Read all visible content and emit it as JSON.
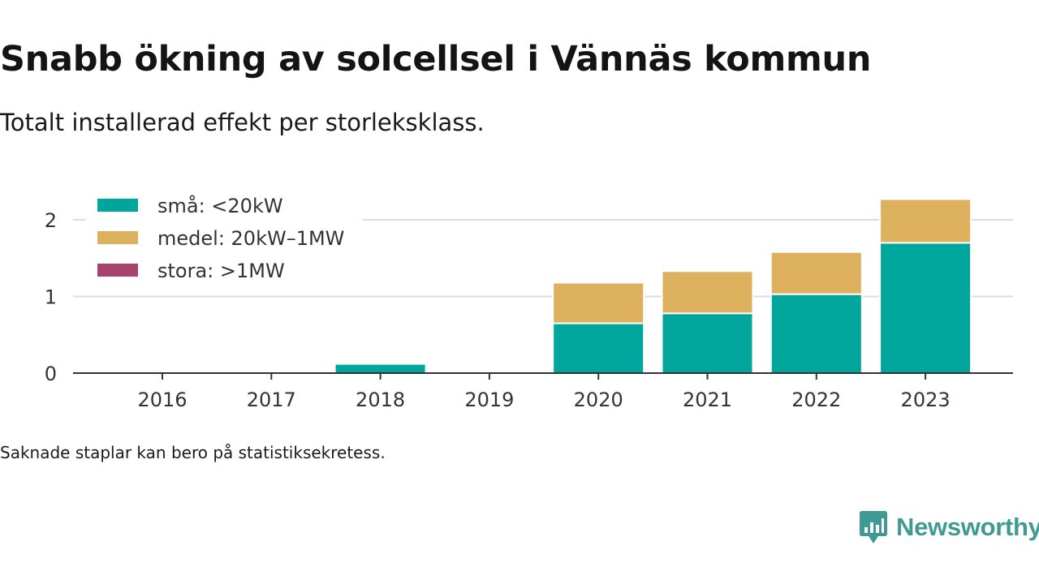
{
  "title": "Snabb ökning av solcellsel i Vännäs kommun",
  "subtitle": "Totalt installerad effekt per storleksklass.",
  "note": "Saknade staplar kan bero på statistiksekretess.",
  "brand": {
    "name": "Newsworthy",
    "icon": "newsworthy-logo-icon",
    "color": "#3f9a95"
  },
  "chart_data": {
    "type": "bar",
    "stacked": true,
    "title": "",
    "xlabel": "",
    "ylabel": "",
    "categories": [
      "2016",
      "2017",
      "2018",
      "2019",
      "2020",
      "2021",
      "2022",
      "2023"
    ],
    "series": [
      {
        "name": "små: <20kW",
        "color": "#00a59b",
        "values": [
          0,
          0.02,
          0.12,
          0,
          0.65,
          0.78,
          1.03,
          1.7
        ]
      },
      {
        "name": "medel: 20kW–1MW",
        "color": "#dcb05c",
        "values": [
          0,
          0,
          0,
          0,
          0.53,
          0.55,
          0.55,
          0.57
        ]
      },
      {
        "name": "stora: >1MW",
        "color": "#a8436c",
        "values": [
          0,
          0,
          0,
          0,
          0,
          0,
          0,
          0
        ]
      }
    ],
    "ylim": [
      0,
      2.2
    ],
    "yticks": [
      0,
      1,
      2
    ],
    "grid": true,
    "legend_position": "top-left"
  }
}
